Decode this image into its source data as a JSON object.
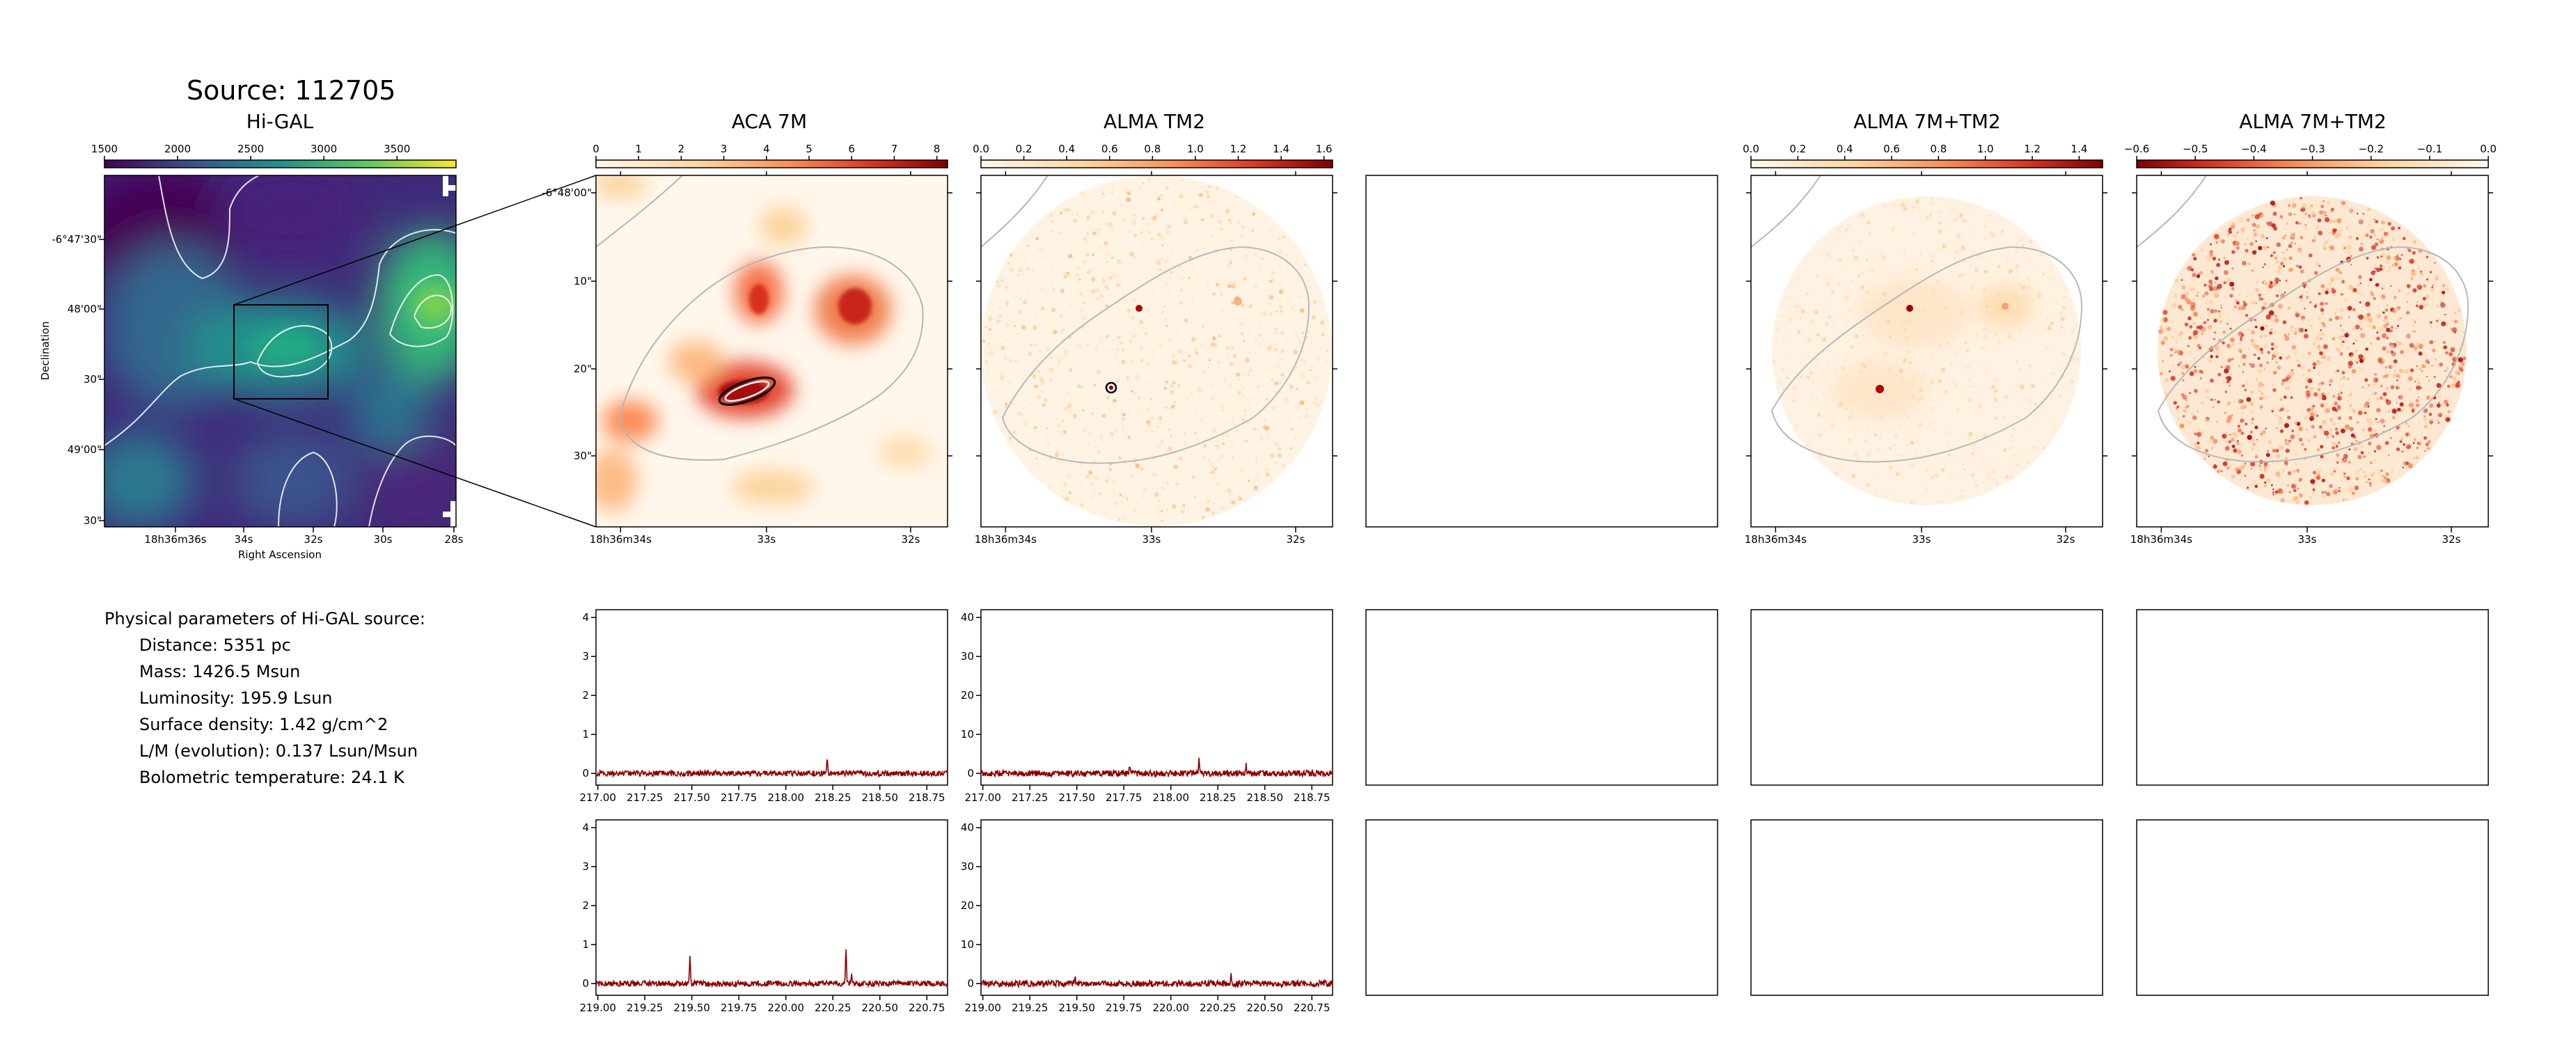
{
  "source_title": "Source: 112705",
  "panels": {
    "higal": {
      "title": "Hi-GAL",
      "colorbar_ticks": [
        "1500",
        "2000",
        "2500",
        "3000",
        "3500"
      ],
      "colormap": "viridis",
      "xticks": [
        "18h36m36s",
        "34s",
        "32s",
        "30s",
        "28s"
      ],
      "yticks": [
        "-6°47'30\"",
        "48'00\"",
        "30\"",
        "49'00\"",
        "30\""
      ],
      "xlabel": "Right Ascension",
      "ylabel": "Declination"
    },
    "aca7m": {
      "title": "ACA 7M",
      "colorbar_ticks": [
        "0",
        "1",
        "2",
        "3",
        "4",
        "5",
        "6",
        "7",
        "8"
      ],
      "colormap": "OrRd",
      "xticks": [
        "18h36m34s",
        "33s",
        "32s"
      ],
      "yticks": [
        "-6°48'00\"",
        "10\"",
        "20\"",
        "30\""
      ]
    },
    "tm2": {
      "title": "ALMA TM2",
      "colorbar_ticks": [
        "0.0",
        "0.2",
        "0.4",
        "0.6",
        "0.8",
        "1.0",
        "1.2",
        "1.4",
        "1.6"
      ],
      "colormap": "OrRd",
      "xticks": [
        "18h36m34s",
        "33s",
        "32s"
      ]
    },
    "combined": {
      "title": "ALMA 7M+TM2",
      "colorbar_ticks": [
        "0.0",
        "0.2",
        "0.4",
        "0.6",
        "0.8",
        "1.0",
        "1.2",
        "1.4"
      ],
      "colormap": "OrRd",
      "xticks": [
        "18h36m34s",
        "33s",
        "32s"
      ]
    },
    "residual": {
      "title": "ALMA 7M+TM2",
      "colorbar_ticks": [
        "−0.6",
        "−0.5",
        "−0.4",
        "−0.3",
        "−0.2",
        "−0.1",
        "0.0"
      ],
      "colormap": "OrRd_r",
      "xticks": [
        "18h36m34s",
        "33s",
        "32s"
      ]
    }
  },
  "params": {
    "heading": "Physical parameters of Hi-GAL source:",
    "lines": [
      "Distance: 5351 pc",
      "Mass: 1426.5 Msun",
      "Luminosity: 195.9 Lsun",
      "Surface density: 1.42 g/cm^2",
      "L/M (evolution): 0.137 Lsun/Msun",
      "Bolometric temperature: 24.1 K"
    ]
  },
  "chart_data": [
    {
      "type": "line",
      "panel": "spectrum-aca7m-lower",
      "x_ticks": [
        "217.00",
        "217.25",
        "217.50",
        "217.75",
        "218.00",
        "218.25",
        "218.50",
        "218.75"
      ],
      "xlim": [
        216.99,
        218.86
      ],
      "y_ticks": [
        "0",
        "1",
        "2",
        "3",
        "4"
      ],
      "ylim": [
        -0.3,
        4.2
      ],
      "lines": [
        {
          "x": 218.22,
          "height": 0.3
        }
      ],
      "noise": 0.07,
      "color": "#8b0000"
    },
    {
      "type": "line",
      "panel": "spectrum-tm2-lower",
      "x_ticks": [
        "217.00",
        "217.25",
        "217.50",
        "217.75",
        "218.00",
        "218.25",
        "218.50",
        "218.75"
      ],
      "xlim": [
        216.99,
        218.86
      ],
      "y_ticks": [
        "0",
        "10",
        "20",
        "30",
        "40"
      ],
      "ylim": [
        -3,
        42
      ],
      "lines": [
        {
          "x": 218.15,
          "height": 3.5
        },
        {
          "x": 218.4,
          "height": 2.0
        },
        {
          "x": 217.78,
          "height": 1.5
        }
      ],
      "noise": 0.8,
      "color": "#8b0000"
    },
    {
      "type": "line",
      "panel": "spectrum-aca7m-upper",
      "x_ticks": [
        "219.00",
        "219.25",
        "219.50",
        "219.75",
        "220.00",
        "220.25",
        "220.50",
        "220.75"
      ],
      "xlim": [
        218.99,
        220.86
      ],
      "y_ticks": [
        "0",
        "1",
        "2",
        "3",
        "4"
      ],
      "ylim": [
        -0.3,
        4.2
      ],
      "lines": [
        {
          "x": 219.49,
          "height": 0.72
        },
        {
          "x": 220.32,
          "height": 0.88
        },
        {
          "x": 220.35,
          "height": 0.3
        }
      ],
      "noise": 0.07,
      "color": "#8b0000"
    },
    {
      "type": "line",
      "panel": "spectrum-tm2-upper",
      "x_ticks": [
        "219.00",
        "219.25",
        "219.50",
        "219.75",
        "220.00",
        "220.25",
        "220.50",
        "220.75"
      ],
      "xlim": [
        218.99,
        220.86
      ],
      "y_ticks": [
        "0",
        "10",
        "20",
        "30",
        "40"
      ],
      "ylim": [
        -3,
        42
      ],
      "lines": [
        {
          "x": 219.49,
          "height": 1.8
        },
        {
          "x": 220.32,
          "height": 2.2
        }
      ],
      "noise": 0.8,
      "color": "#8b0000"
    }
  ]
}
